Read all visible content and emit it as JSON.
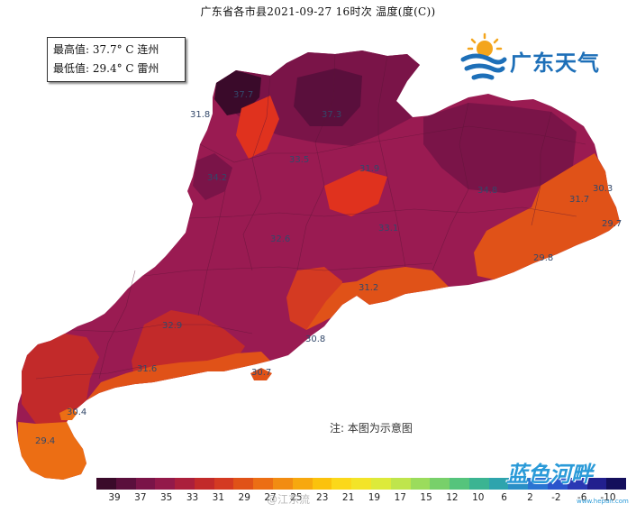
{
  "title": "广东省各市县2021-09-27 16时次 温度(度(C))",
  "stats": {
    "max_line": "最高值: 37.7° C  连州",
    "min_line": "最低值: 29.4° C  雷州"
  },
  "logo": {
    "text": "广东天气"
  },
  "note": "注: 本图为示意图",
  "watermark": {
    "brand": "蓝色河畔",
    "site": "www.hepan.com",
    "weibo": "@江东流"
  },
  "legend": {
    "colors": [
      "#3a0a2a",
      "#5a0f3c",
      "#7a1448",
      "#93194a",
      "#ab1f3c",
      "#c22a2a",
      "#d43a22",
      "#e05218",
      "#ec6e14",
      "#f28c12",
      "#f7a80e",
      "#fbc20c",
      "#fbd81a",
      "#f3e428",
      "#ddea3a",
      "#bfe54c",
      "#9bdc5c",
      "#78d06a",
      "#55c47c",
      "#3bb492",
      "#2ea4ad",
      "#2a8fc6",
      "#2a74d2",
      "#2a55cc",
      "#2a38b4",
      "#221f8e",
      "#140f5c"
    ],
    "ticks": [
      "39",
      "37",
      "35",
      "33",
      "31",
      "29",
      "27",
      "25",
      "23",
      "21",
      "19",
      "17",
      "15",
      "12",
      "10",
      "6",
      "2",
      "-2",
      "-6",
      "-10"
    ]
  },
  "map_labels": [
    {
      "text": "37.7",
      "fill": "#3a0a2a"
    },
    {
      "text": "31.8",
      "fill": "#c22a2a"
    },
    {
      "text": "37.3",
      "fill": "#5a0f3c"
    },
    {
      "text": "30.8",
      "fill": "#e05218"
    },
    {
      "text": "30.7",
      "fill": "#e05218"
    },
    {
      "text": "31.7",
      "fill": "#c22a2a"
    },
    {
      "text": "30.3",
      "fill": "#e05218"
    },
    {
      "text": "29.7",
      "fill": "#ec6e14"
    },
    {
      "text": "31.9",
      "fill": "#c22a2a"
    },
    {
      "text": "29.8",
      "fill": "#ec6e14"
    },
    {
      "text": "31.2",
      "fill": "#d43a22"
    },
    {
      "text": "31.6",
      "fill": "#c22a2a"
    },
    {
      "text": "29.4",
      "fill": "#ec6e14"
    },
    {
      "text": "30.4",
      "fill": "#e05218"
    },
    {
      "text": "33.5",
      "fill": "#93194a"
    },
    {
      "text": "34.2",
      "fill": "#7a1448"
    },
    {
      "text": "32.6",
      "fill": "#ab1f3c"
    },
    {
      "text": "33.1",
      "fill": "#93194a"
    },
    {
      "text": "34.8",
      "fill": "#7a1448"
    },
    {
      "text": "32.9",
      "fill": "#ab1f3c"
    }
  ]
}
